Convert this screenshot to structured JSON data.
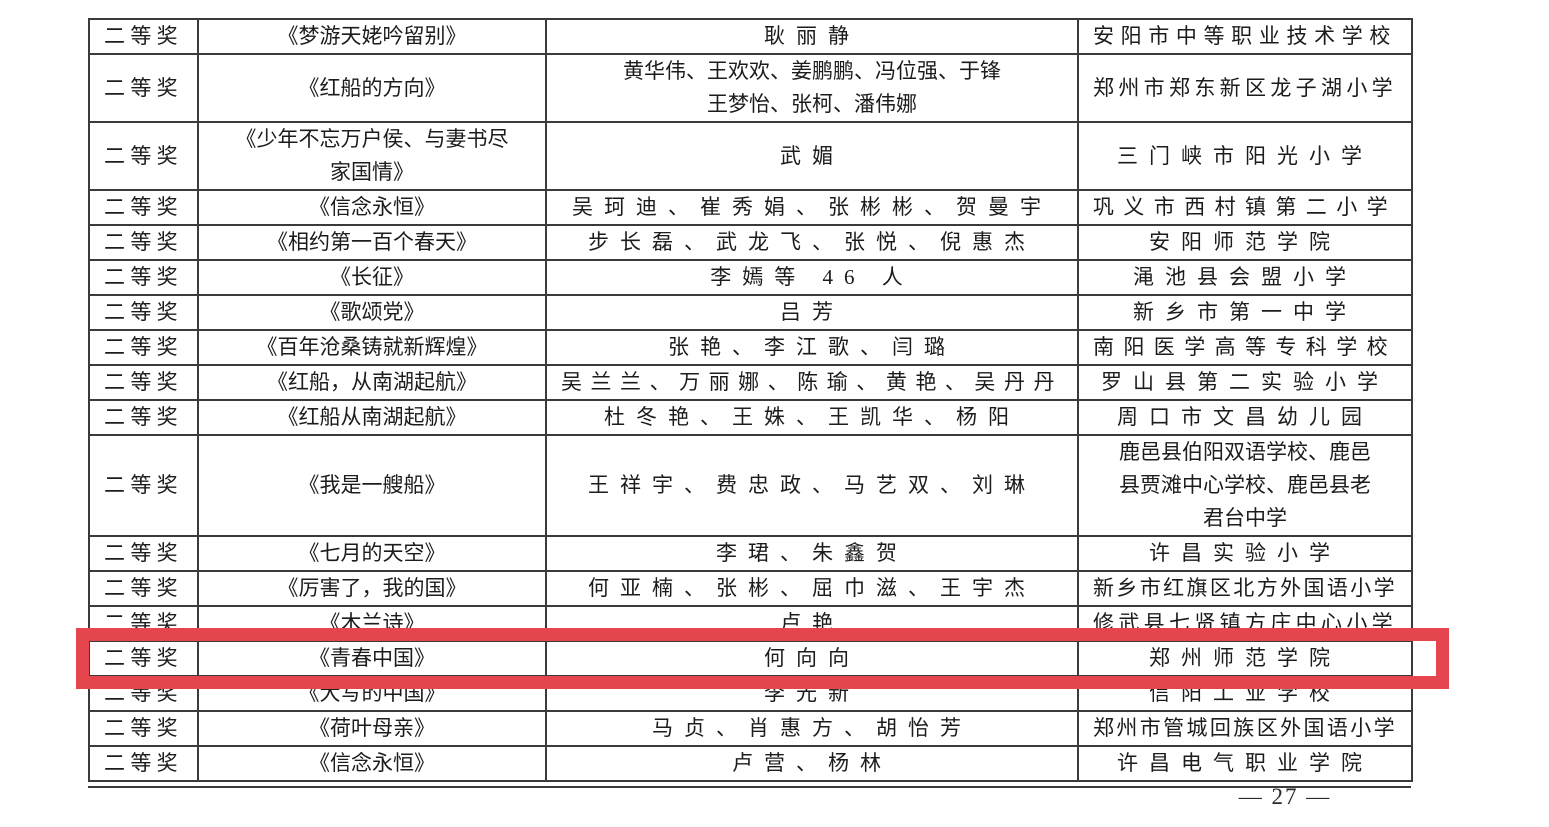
{
  "document": {
    "footer": {
      "page_number": "— 27 —"
    },
    "highlight_color": "#e5454c"
  },
  "table": {
    "rows": [
      {
        "prize": "二等奖",
        "title": "《梦游天姥吟留别》",
        "authors": "耿丽静",
        "school": "安阳市中等职业技术学校"
      },
      {
        "prize": "二等奖",
        "title": "《红船的方向》",
        "authors": "黄华伟、王欢欢、姜鹏鹏、冯位强、于锋\n王梦怡、张柯、潘伟娜",
        "school": "郑州市郑东新区龙子湖小学"
      },
      {
        "prize": "二等奖",
        "title": "《少年不忘万户侯、与妻书尽\n家国情》",
        "authors": "武媚",
        "school": "三门峡市阳光小学"
      },
      {
        "prize": "二等奖",
        "title": "《信念永恒》",
        "authors": "吴珂迪、崔秀娟、张彬彬、贺曼宇",
        "school": "巩义市西村镇第二小学"
      },
      {
        "prize": "二等奖",
        "title": "《相约第一百个春天》",
        "authors": "步长磊、武龙飞、张悦、倪惠杰",
        "school": "安阳师范学院"
      },
      {
        "prize": "二等奖",
        "title": "《长征》",
        "authors": "李嫣等 46 人",
        "school": "渑池县会盟小学"
      },
      {
        "prize": "二等奖",
        "title": "《歌颂党》",
        "authors": "吕芳",
        "school": "新乡市第一中学"
      },
      {
        "prize": "二等奖",
        "title": "《百年沧桑铸就新辉煌》",
        "authors": "张艳、李江歌、闫璐",
        "school": "南阳医学高等专科学校"
      },
      {
        "prize": "二等奖",
        "title": "《红船，从南湖起航》",
        "authors": "吴兰兰、万丽娜、陈瑜、黄艳、吴丹丹",
        "school": "罗山县第二实验小学"
      },
      {
        "prize": "二等奖",
        "title": "《红船从南湖起航》",
        "authors": "杜冬艳、王姝、王凯华、杨阳",
        "school": "周口市文昌幼儿园"
      },
      {
        "prize": "二等奖",
        "title": "《我是一艘船》",
        "authors": "王祥宇、费忠政、马艺双、刘琳",
        "school": "鹿邑县伯阳双语学校、鹿邑\n县贾滩中心学校、鹿邑县老\n君台中学"
      },
      {
        "prize": "二等奖",
        "title": "《七月的天空》",
        "authors": "李珺、朱鑫贺",
        "school": "许昌实验小学"
      },
      {
        "prize": "二等奖",
        "title": "《厉害了，我的国》",
        "authors": "何亚楠、张彬、屈巾滋、王宇杰",
        "school": "新乡市红旗区北方外国语小学"
      },
      {
        "prize": "二等奖",
        "title": "《木兰诗》",
        "authors": "卢艳",
        "school": "修武县七贤镇方庄中心小学"
      },
      {
        "prize": "二等奖",
        "title": "《青春中国》",
        "authors": "何向向",
        "school": "郑州师范学院",
        "highlighted": true
      },
      {
        "prize": "二等奖",
        "title": "《大写的中国》",
        "authors": "李光新",
        "school": "信阳工业学校"
      },
      {
        "prize": "二等奖",
        "title": "《荷叶母亲》",
        "authors": "马贞、肖惠方、胡怡芳",
        "school": "郑州市管城回族区外国语小学"
      },
      {
        "prize": "二等奖",
        "title": "《信念永恒》",
        "authors": "卢营、杨林",
        "school": "许昌电气职业学院"
      }
    ]
  }
}
